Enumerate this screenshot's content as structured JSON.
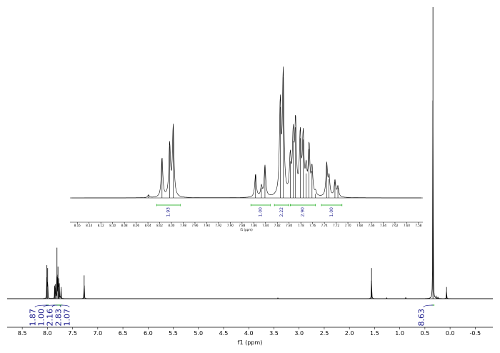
{
  "chart_data": [
    {
      "id": "main",
      "type": "line",
      "xlabel": "f1 (ppm)",
      "xlim": [
        8.8,
        -0.85
      ],
      "reversed_x": true,
      "grid": false,
      "xticks": [
        "8.5",
        "8.0",
        "7.5",
        "7.0",
        "6.5",
        "6.0",
        "5.5",
        "5.0",
        "4.5",
        "4.0",
        "3.5",
        "3.0",
        "2.5",
        "2.0",
        "1.5",
        "1.0",
        "0.5",
        "0.0",
        "-0.5"
      ],
      "peaks": [
        {
          "ppm": 8.01,
          "height": 0.115
        },
        {
          "ppm": 7.995,
          "height": 0.105
        },
        {
          "ppm": 7.855,
          "height": 0.045
        },
        {
          "ppm": 7.84,
          "height": 0.05
        },
        {
          "ppm": 7.81,
          "height": 0.175
        },
        {
          "ppm": 7.79,
          "height": 0.11
        },
        {
          "ppm": 7.775,
          "height": 0.07
        },
        {
          "ppm": 7.765,
          "height": 0.05
        },
        {
          "ppm": 7.73,
          "height": 0.04
        },
        {
          "ppm": 7.27,
          "height": 0.08
        },
        {
          "ppm": 3.42,
          "height": 0.003
        },
        {
          "ppm": 1.56,
          "height": 0.105
        },
        {
          "ppm": 1.26,
          "height": 0.004
        },
        {
          "ppm": 0.88,
          "height": 0.004
        },
        {
          "ppm": 0.34,
          "height": 1.0
        },
        {
          "ppm": 0.28,
          "height": 0.008
        },
        {
          "ppm": 0.24,
          "height": 0.006
        },
        {
          "ppm": 0.07,
          "height": 0.04
        }
      ],
      "integrals": [
        {
          "label": "1.87",
          "ppm": 8.0
        },
        {
          "label": "1.00",
          "ppm": 7.85
        },
        {
          "label": "2.16",
          "ppm": 7.8
        },
        {
          "label": "2.83",
          "ppm": 7.77
        },
        {
          "label": "1.07",
          "ppm": 7.73
        },
        {
          "label": "8.63",
          "ppm": 0.34
        }
      ],
      "color": "#000000",
      "integral_color": "#1a1a8c",
      "integral_bar_color": "#00a000"
    },
    {
      "id": "inset",
      "type": "line",
      "xlabel": "f1 (ppm)",
      "xlim": [
        8.17,
        7.575
      ],
      "reversed_x": true,
      "grid": false,
      "xticks": [
        "8.16",
        "8.14",
        "8.12",
        "8.10",
        "8.08",
        "8.06",
        "8.04",
        "8.02",
        "8.00",
        "7.98",
        "7.96",
        "7.94",
        "7.92",
        "7.90",
        "7.88",
        "7.86",
        "7.84",
        "7.82",
        "7.80",
        "7.78",
        "7.76",
        "7.74",
        "7.72",
        "7.70",
        "7.68",
        "7.66",
        "7.64",
        "7.62",
        "7.60",
        "7.58"
      ],
      "peaks": [
        {
          "ppm": 8.039,
          "height": 0.02
        },
        {
          "ppm": 8.016,
          "height": 0.29
        },
        {
          "ppm": 8.003,
          "height": 0.38
        },
        {
          "ppm": 7.997,
          "height": 0.52
        },
        {
          "ppm": 7.857,
          "height": 0.17
        },
        {
          "ppm": 7.847,
          "height": 0.075
        },
        {
          "ppm": 7.841,
          "height": 0.23
        },
        {
          "ppm": 7.815,
          "height": 0.67
        },
        {
          "ppm": 7.81,
          "height": 0.89
        },
        {
          "ppm": 7.798,
          "height": 0.27
        },
        {
          "ppm": 7.793,
          "height": 0.42
        },
        {
          "ppm": 7.789,
          "height": 0.52
        },
        {
          "ppm": 7.781,
          "height": 0.44
        },
        {
          "ppm": 7.776,
          "height": 0.43
        },
        {
          "ppm": 7.771,
          "height": 0.18
        },
        {
          "ppm": 7.766,
          "height": 0.36
        },
        {
          "ppm": 7.761,
          "height": 0.2
        },
        {
          "ppm": 7.755,
          "height": 0.03
        },
        {
          "ppm": 7.736,
          "height": 0.24
        },
        {
          "ppm": 7.732,
          "height": 0.14
        },
        {
          "ppm": 7.722,
          "height": 0.12
        },
        {
          "ppm": 7.717,
          "height": 0.075
        }
      ],
      "integrals": [
        {
          "label": "1.93",
          "from": 8.025,
          "to": 7.985
        },
        {
          "label": "1.00",
          "from": 7.865,
          "to": 7.832
        },
        {
          "label": "2.22",
          "from": 7.825,
          "to": 7.8
        },
        {
          "label": "2.90",
          "from": 7.798,
          "to": 7.755
        },
        {
          "label": "1.00",
          "from": 7.745,
          "to": 7.71
        }
      ],
      "color": "#000000",
      "integral_color": "#1a1a8c",
      "integral_bar_color": "#00a000"
    }
  ]
}
